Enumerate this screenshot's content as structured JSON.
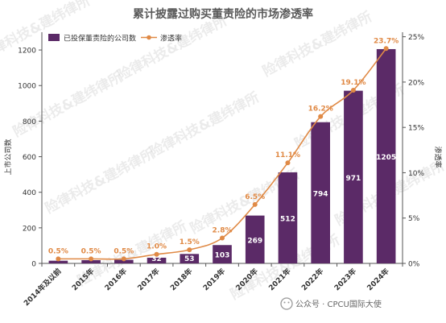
{
  "chart_data": {
    "type": "bar",
    "title": "累计披露过购买董责险的市场渗透率",
    "categories": [
      "2014年及以前",
      "2015年",
      "2016年",
      "2017年",
      "2018年",
      "2019年",
      "2020年",
      "2021年",
      "2022年",
      "2023年",
      "2024年"
    ],
    "series": [
      {
        "name": "已投保董责险的公司数",
        "type": "bar",
        "axis": "left",
        "values": [
          15,
          18,
          20,
          32,
          53,
          103,
          269,
          512,
          794,
          971,
          1205
        ],
        "labels": [
          "",
          "",
          "",
          "32",
          "53",
          "103",
          "269",
          "512",
          "794",
          "971",
          "1205"
        ]
      },
      {
        "name": "渗透率",
        "type": "line",
        "axis": "right",
        "values": [
          0.5,
          0.5,
          0.5,
          1.0,
          1.5,
          2.8,
          6.5,
          11.1,
          16.2,
          19.1,
          23.7
        ],
        "labels": [
          "0.5%",
          "0.5%",
          "0.5%",
          "1.0%",
          "1.5%",
          "2.8%",
          "6.5%",
          "11.1%",
          "16.2%",
          "19.1%",
          "23.7%"
        ]
      }
    ],
    "ylabel": "上市公司数",
    "y2label": "渗透率",
    "ylim": [
      0,
      1300
    ],
    "yticks": [
      "0",
      "200",
      "400",
      "600",
      "800",
      "1000",
      "1200"
    ],
    "y2lim": [
      0,
      25.5
    ],
    "y2ticks": [
      "0%",
      "5%",
      "10%",
      "15%",
      "20%",
      "25%"
    ],
    "legend_position": "top-left",
    "grid": false
  },
  "watermark": "险律科技&建纬律所",
  "footer": {
    "icon": "wechat-icon",
    "text": "公众号 · CPCU国际大使"
  },
  "colors": {
    "bar": "#5b2a67",
    "line": "#e08a46",
    "axis": "#555555",
    "title": "#5a5a5a"
  }
}
